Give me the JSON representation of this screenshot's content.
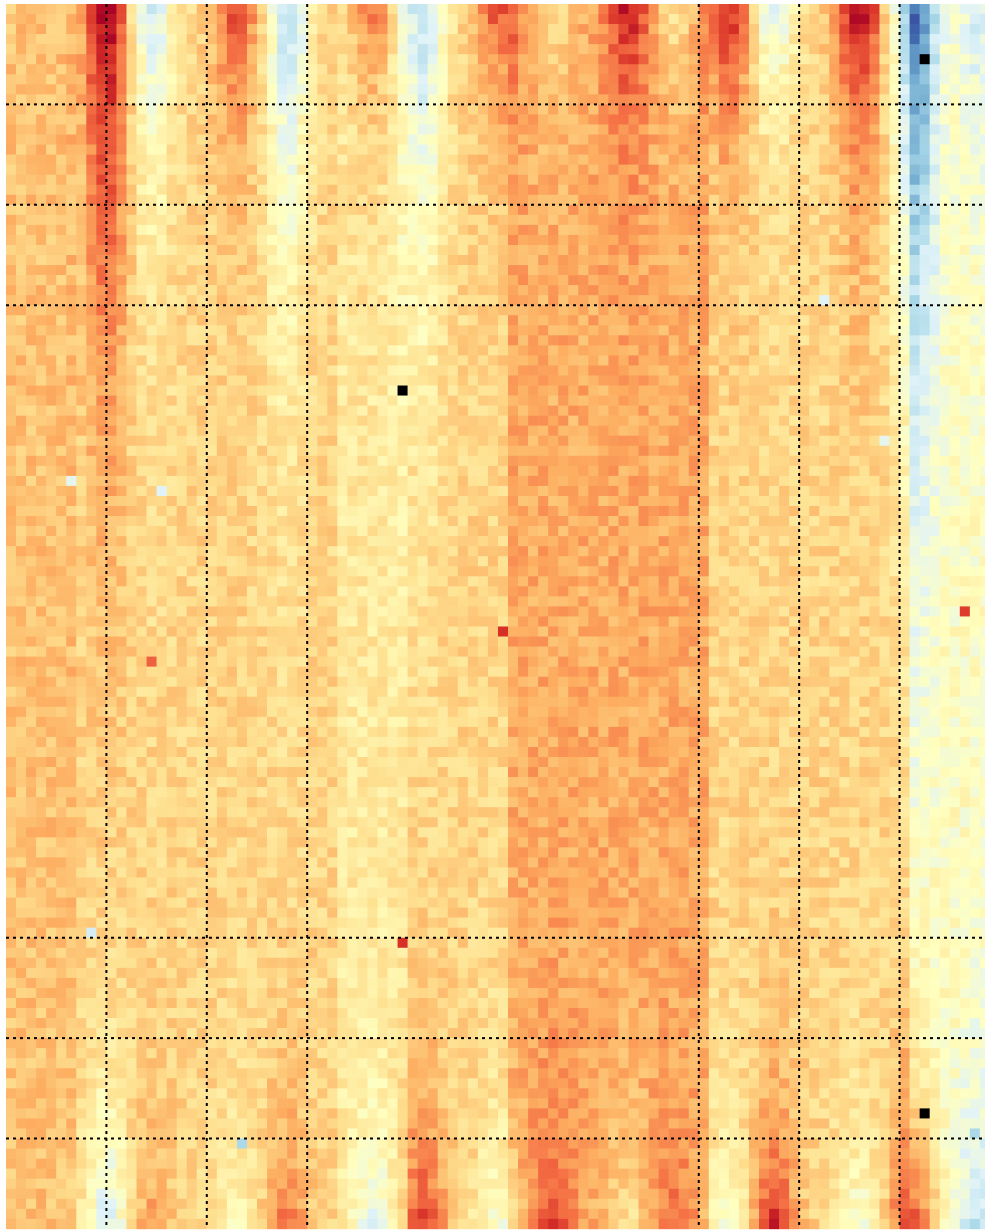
{
  "chart_data": {
    "type": "heatmap",
    "title": "",
    "xlabel": "",
    "ylabel": "",
    "rows": 122,
    "cols": 98,
    "colormap": {
      "name": "diverging-red-yellow-blue",
      "stops": [
        "#313695",
        "#4575b4",
        "#74add1",
        "#abd9e9",
        "#e0f3f8",
        "#ffffbf",
        "#fee090",
        "#fdae61",
        "#f46d43",
        "#d73027",
        "#a50026"
      ]
    },
    "masked_color": "#000000",
    "value_model": {
      "baseline": 0.62,
      "noise_amplitude": 0.05,
      "stripe_columns": [
        {
          "center_col": 9.5,
          "sign": 1,
          "top_strength": 0.38,
          "top_reach_rows": 30,
          "bottom_strength": -0.25,
          "bottom_reach_rows": 13
        },
        {
          "center_col": 14,
          "sign": -1,
          "top_strength": 0.25,
          "top_reach_rows": 18,
          "bottom_strength": 0.1,
          "bottom_reach_rows": 10
        },
        {
          "center_col": 22.5,
          "sign": 1,
          "top_strength": 0.25,
          "top_reach_rows": 12,
          "bottom_strength": -0.12,
          "bottom_reach_rows": 10
        },
        {
          "center_col": 27.5,
          "sign": -1,
          "top_strength": 0.3,
          "top_reach_rows": 24,
          "bottom_strength": 0.18,
          "bottom_reach_rows": 10
        },
        {
          "center_col": 36,
          "sign": 1,
          "top_strength": 0.22,
          "top_reach_rows": 10,
          "bottom_strength": -0.15,
          "bottom_reach_rows": 10
        },
        {
          "center_col": 41,
          "sign": -1,
          "top_strength": 0.3,
          "top_reach_rows": 26,
          "bottom_strength": 0.25,
          "bottom_reach_rows": 12
        },
        {
          "center_col": 48.5,
          "sign": 1,
          "top_strength": 0.22,
          "top_reach_rows": 10,
          "bottom_strength": -0.15,
          "bottom_reach_rows": 10
        },
        {
          "center_col": 54,
          "sign": -1,
          "top_strength": 0.12,
          "top_reach_rows": 8,
          "bottom_strength": 0.18,
          "bottom_reach_rows": 10
        },
        {
          "center_col": 61.5,
          "sign": 1,
          "top_strength": 0.25,
          "top_reach_rows": 10,
          "bottom_strength": -0.12,
          "bottom_reach_rows": 8
        },
        {
          "center_col": 66,
          "sign": -1,
          "top_strength": 0.12,
          "top_reach_rows": 8,
          "bottom_strength": 0.12,
          "bottom_reach_rows": 8
        },
        {
          "center_col": 71.5,
          "sign": 1,
          "top_strength": 0.3,
          "top_reach_rows": 12,
          "bottom_strength": -0.15,
          "bottom_reach_rows": 10
        },
        {
          "center_col": 76,
          "sign": -1,
          "top_strength": 0.22,
          "top_reach_rows": 10,
          "bottom_strength": 0.3,
          "bottom_reach_rows": 10
        },
        {
          "center_col": 84.5,
          "sign": 1,
          "top_strength": 0.38,
          "top_reach_rows": 14,
          "bottom_strength": -0.15,
          "bottom_reach_rows": 10
        },
        {
          "center_col": 90,
          "sign": -1,
          "top_strength": 0.42,
          "top_reach_rows": 32,
          "bottom_strength": 0.35,
          "bottom_reach_rows": 12
        },
        {
          "center_col": 96.5,
          "sign": -1,
          "top_strength": 0.12,
          "top_reach_rows": 14,
          "bottom_strength": -0.18,
          "bottom_reach_rows": 12
        }
      ],
      "interior_bands": [
        {
          "col_start": 50,
          "col_end": 70,
          "delta": 0.08
        },
        {
          "col_start": 90,
          "col_end": 98,
          "delta": -0.12
        },
        {
          "col_start": 33,
          "col_end": 40,
          "delta": -0.05
        },
        {
          "col_start": 0,
          "col_end": 7,
          "delta": 0.04
        }
      ],
      "outliers": [
        {
          "row": 62,
          "col": 49,
          "value": 0.9
        },
        {
          "row": 93,
          "col": 39,
          "value": 0.9
        },
        {
          "row": 60,
          "col": 95,
          "value": 0.88
        },
        {
          "row": 65,
          "col": 14,
          "value": 0.82
        },
        {
          "row": 47,
          "col": 6,
          "value": 0.42
        },
        {
          "row": 48,
          "col": 15,
          "value": 0.4
        },
        {
          "row": 92,
          "col": 8,
          "value": 0.38
        },
        {
          "row": 29,
          "col": 81,
          "value": 0.4
        },
        {
          "row": 43,
          "col": 87,
          "value": 0.42
        },
        {
          "row": 113,
          "col": 23,
          "value": 0.3
        },
        {
          "row": 112,
          "col": 96,
          "value": 0.3
        }
      ],
      "masked_cells": [
        {
          "row": 5,
          "col": 91
        },
        {
          "row": 38,
          "col": 39
        },
        {
          "row": 110,
          "col": 91
        }
      ]
    },
    "grid": {
      "style": "dotted",
      "color": "#000000",
      "vertical_after_cols": [
        10,
        20,
        30,
        69,
        79,
        89
      ],
      "horizontal_after_rows": [
        10,
        20,
        30,
        93,
        103,
        113
      ]
    },
    "legend": "none",
    "tick_labels": "none"
  }
}
